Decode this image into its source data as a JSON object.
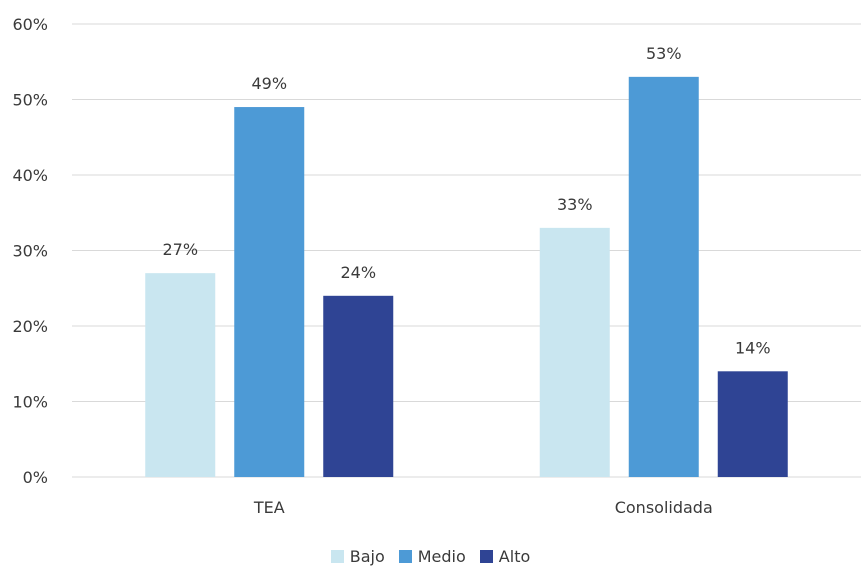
{
  "chart_data": {
    "type": "bar",
    "categories": [
      "TEA",
      "Consolidada"
    ],
    "series": [
      {
        "name": "Bajo",
        "values": [
          27,
          33
        ],
        "labels": [
          "27%",
          "33%"
        ],
        "color": "#c9e6f0"
      },
      {
        "name": "Medio",
        "values": [
          49,
          53
        ],
        "labels": [
          "49%",
          "53%"
        ],
        "color": "#4d9ad6"
      },
      {
        "name": "Alto",
        "values": [
          24,
          14
        ],
        "labels": [
          "24%",
          "14%"
        ],
        "color": "#2f4494"
      }
    ],
    "ylim": [
      0,
      60
    ],
    "yticks": [
      "0%",
      "10%",
      "20%",
      "30%",
      "40%",
      "50%",
      "60%"
    ],
    "grid": true,
    "legend_position": "bottom"
  }
}
